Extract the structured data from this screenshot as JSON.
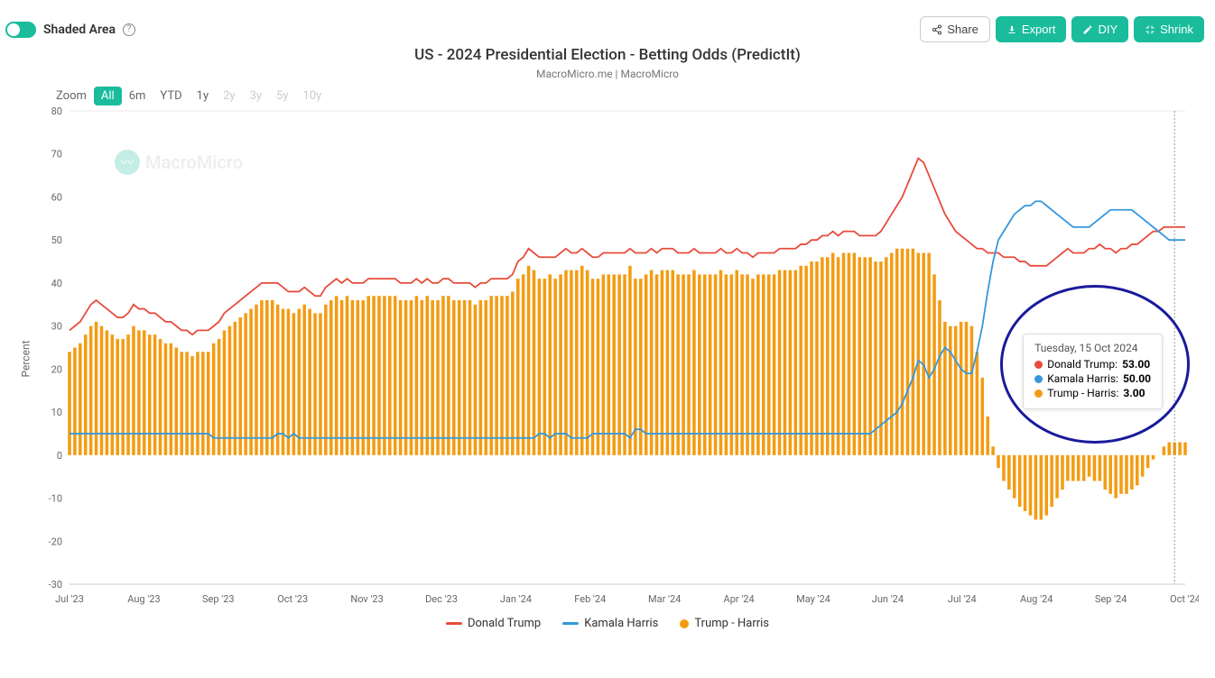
{
  "toggle": {
    "label": "Shaded Area"
  },
  "buttons": {
    "share": "Share",
    "export": "Export",
    "diy": "DIY",
    "shrink": "Shrink"
  },
  "chart": {
    "title": "US - 2024 Presidential Election - Betting Odds (PredictIt)",
    "subtitle": "MacroMicro.me | MacroMicro",
    "watermark": "MacroMicro",
    "ylabel": "Percent",
    "ylim": [
      -30,
      80
    ],
    "ytick_step": 10,
    "yticks": [
      -30,
      -20,
      -10,
      0,
      10,
      20,
      30,
      40,
      50,
      60,
      70,
      80
    ],
    "xticks": [
      "Jul '23",
      "Aug '23",
      "Sep '23",
      "Oct '23",
      "Nov '23",
      "Dec '23",
      "Jan '24",
      "Feb '24",
      "Mar '24",
      "Apr '24",
      "May '24",
      "Jun '24",
      "Jul '24",
      "Aug '24",
      "Sep '24",
      "Oct '24"
    ],
    "colors": {
      "trump": "#e74c3c",
      "harris": "#3498db",
      "diff": "#f39c12",
      "grid": "#e8e8e8",
      "axis": "#cccccc",
      "background": "#ffffff",
      "accent": "#1abc9c",
      "annotation": "#1a1a9c"
    },
    "series": {
      "trump": {
        "label": "Donald Trump",
        "data": [
          29,
          30,
          31,
          33,
          35,
          36,
          35,
          34,
          33,
          32,
          32,
          33,
          35,
          34,
          34,
          33,
          33,
          32,
          31,
          31,
          30,
          29,
          29,
          28,
          29,
          29,
          29,
          30,
          31,
          33,
          34,
          35,
          36,
          37,
          38,
          39,
          40,
          40,
          40,
          40,
          39,
          38,
          38,
          38,
          39,
          38,
          37,
          37,
          39,
          40,
          41,
          40,
          41,
          40,
          40,
          40,
          41,
          41,
          41,
          41,
          41,
          41,
          40,
          40,
          40,
          41,
          40,
          41,
          40,
          40,
          41,
          41,
          40,
          40,
          40,
          40,
          39,
          40,
          40,
          41,
          41,
          41,
          41,
          42,
          45,
          46,
          48,
          47,
          46,
          46,
          46,
          46,
          47,
          48,
          47,
          47,
          48,
          47,
          46,
          46,
          47,
          47,
          47,
          47,
          47,
          48,
          47,
          47,
          47,
          48,
          47,
          48,
          48,
          48,
          47,
          47,
          47,
          48,
          47,
          47,
          47,
          47,
          48,
          47,
          47,
          48,
          47,
          47,
          46,
          47,
          47,
          47,
          47,
          48,
          48,
          48,
          48,
          49,
          49,
          50,
          50,
          51,
          51,
          52,
          51,
          52,
          52,
          52,
          51,
          51,
          51,
          51,
          52,
          54,
          56,
          58,
          60,
          63,
          66,
          69,
          68,
          65,
          62,
          59,
          56,
          54,
          52,
          51,
          50,
          49,
          48,
          48,
          47,
          47,
          47,
          46,
          46,
          46,
          45,
          45,
          44,
          44,
          44,
          44,
          45,
          46,
          47,
          48,
          47,
          47,
          47,
          48,
          48,
          49,
          48,
          48,
          47,
          48,
          48,
          49,
          49,
          50,
          51,
          52,
          52,
          53,
          53,
          53,
          53,
          53
        ]
      },
      "harris": {
        "label": "Kamala Harris",
        "data": [
          5,
          5,
          5,
          5,
          5,
          5,
          5,
          5,
          5,
          5,
          5,
          5,
          5,
          5,
          5,
          5,
          5,
          5,
          5,
          5,
          5,
          5,
          5,
          5,
          5,
          5,
          5,
          4,
          4,
          4,
          4,
          4,
          4,
          4,
          4,
          4,
          4,
          4,
          4,
          5,
          5,
          4,
          5,
          4,
          4,
          4,
          4,
          4,
          4,
          4,
          4,
          4,
          4,
          4,
          4,
          4,
          4,
          4,
          4,
          4,
          4,
          4,
          4,
          4,
          4,
          4,
          4,
          4,
          4,
          4,
          4,
          4,
          4,
          4,
          4,
          4,
          4,
          4,
          4,
          4,
          4,
          4,
          4,
          4,
          4,
          4,
          4,
          4,
          5,
          5,
          4,
          5,
          5,
          5,
          4,
          4,
          4,
          4,
          5,
          5,
          5,
          5,
          5,
          5,
          5,
          4,
          6,
          6,
          5,
          5,
          5,
          5,
          5,
          5,
          5,
          5,
          5,
          5,
          5,
          5,
          5,
          5,
          5,
          5,
          5,
          5,
          5,
          5,
          5,
          5,
          5,
          5,
          5,
          5,
          5,
          5,
          5,
          5,
          5,
          5,
          5,
          5,
          5,
          5,
          5,
          5,
          5,
          5,
          5,
          5,
          5,
          6,
          7,
          8,
          9,
          10,
          12,
          15,
          18,
          22,
          21,
          18,
          20,
          23,
          25,
          24,
          22,
          20,
          19,
          19,
          24,
          30,
          38,
          45,
          50,
          52,
          54,
          56,
          57,
          58,
          58,
          59,
          59,
          58,
          57,
          56,
          55,
          54,
          53,
          53,
          53,
          53,
          54,
          55,
          56,
          57,
          57,
          57,
          57,
          57,
          56,
          55,
          54,
          53,
          52,
          51,
          50,
          50,
          50,
          50
        ]
      },
      "diff": {
        "label": "Trump - Harris",
        "data": [
          24,
          25,
          26,
          28,
          30,
          31,
          30,
          29,
          28,
          27,
          27,
          28,
          30,
          29,
          29,
          28,
          28,
          27,
          26,
          26,
          25,
          24,
          24,
          23,
          24,
          24,
          24,
          26,
          27,
          29,
          30,
          31,
          32,
          33,
          34,
          35,
          36,
          36,
          36,
          35,
          34,
          34,
          33,
          34,
          35,
          34,
          33,
          33,
          35,
          36,
          37,
          36,
          37,
          36,
          36,
          36,
          37,
          37,
          37,
          37,
          37,
          37,
          36,
          36,
          36,
          37,
          36,
          37,
          36,
          36,
          37,
          37,
          36,
          36,
          36,
          36,
          35,
          36,
          36,
          37,
          37,
          37,
          37,
          38,
          41,
          42,
          44,
          43,
          41,
          41,
          42,
          41,
          42,
          43,
          43,
          43,
          44,
          43,
          41,
          41,
          42,
          42,
          42,
          42,
          42,
          44,
          41,
          41,
          42,
          43,
          42,
          43,
          43,
          43,
          42,
          42,
          42,
          43,
          42,
          42,
          42,
          42,
          43,
          42,
          42,
          43,
          42,
          42,
          41,
          42,
          42,
          42,
          42,
          43,
          43,
          43,
          43,
          44,
          44,
          45,
          45,
          46,
          46,
          47,
          46,
          47,
          47,
          47,
          46,
          46,
          46,
          45,
          45,
          46,
          47,
          48,
          48,
          48,
          48,
          47,
          47,
          47,
          42,
          36,
          31,
          30,
          30,
          31,
          31,
          30,
          24,
          18,
          9,
          2,
          -3,
          -6,
          -8,
          -10,
          -12,
          -13,
          -14,
          -15,
          -15,
          -14,
          -12,
          -10,
          -8,
          -6,
          -6,
          -6,
          -6,
          -5,
          -6,
          -6,
          -8,
          -9,
          -10,
          -9,
          -9,
          -8,
          -7,
          -5,
          -3,
          -1,
          0,
          2,
          3,
          3,
          3,
          3
        ]
      }
    }
  },
  "zoom": {
    "label": "Zoom",
    "options": [
      "All",
      "6m",
      "YTD",
      "1y",
      "2y",
      "3y",
      "5y",
      "10y"
    ],
    "active": "All",
    "disabled": [
      "2y",
      "3y",
      "5y",
      "10y"
    ]
  },
  "tooltip": {
    "date": "Tuesday, 15 Oct 2024",
    "items": [
      {
        "label": "Donald Trump",
        "value": "53.00",
        "color": "#e74c3c"
      },
      {
        "label": "Kamala Harris",
        "value": "50.00",
        "color": "#3498db"
      },
      {
        "label": "Trump - Harris",
        "value": "3.00",
        "color": "#f39c12"
      }
    ]
  },
  "legend": [
    {
      "label": "Donald Trump",
      "type": "line",
      "color": "#e74c3c"
    },
    {
      "label": "Kamala Harris",
      "type": "line",
      "color": "#3498db"
    },
    {
      "label": "Trump - Harris",
      "type": "dot",
      "color": "#f39c12"
    }
  ]
}
